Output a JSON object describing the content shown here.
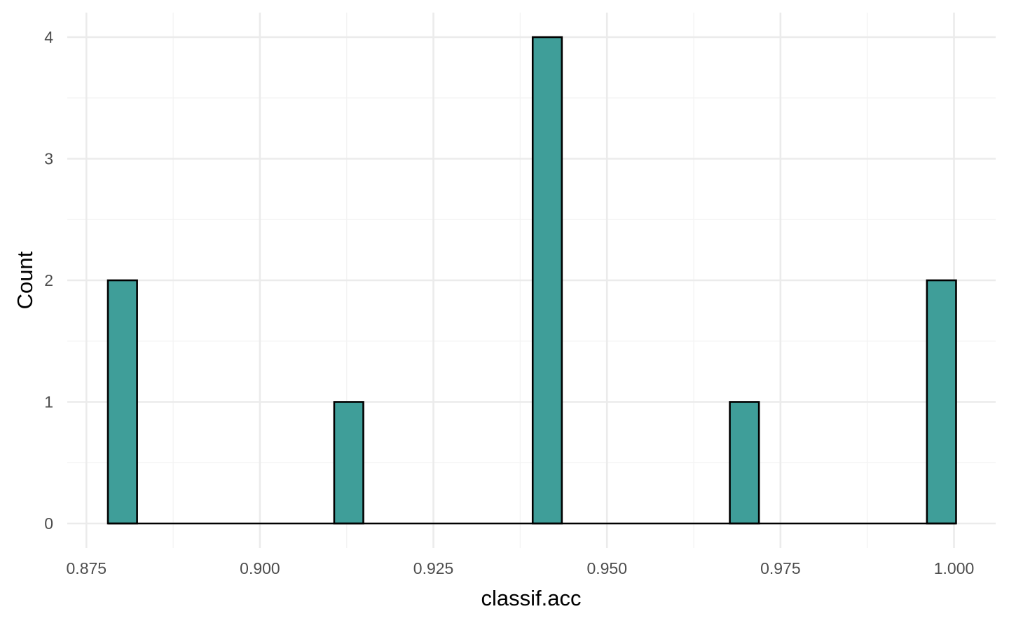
{
  "chart_data": {
    "type": "bar",
    "subtype": "histogram",
    "xlabel": "classif.acc",
    "ylabel": "Count",
    "xlim": [
      0.871,
      1.006
    ],
    "ylim": [
      0,
      4.2
    ],
    "x_ticks": [
      0.875,
      0.9,
      0.925,
      0.95,
      0.975,
      1.0
    ],
    "x_tick_labels": [
      "0.875",
      "0.900",
      "0.925",
      "0.950",
      "0.975",
      "1.000"
    ],
    "y_ticks": [
      0,
      1,
      2,
      3,
      4
    ],
    "y_tick_labels": [
      "0",
      "1",
      "2",
      "3",
      "4"
    ],
    "bin_width": 0.00419,
    "bins": [
      {
        "x0": 0.8781,
        "x1": 0.8823,
        "count": 2
      },
      {
        "x0": 0.9107,
        "x1": 0.9149,
        "count": 1
      },
      {
        "x0": 0.9393,
        "x1": 0.9435,
        "count": 4
      },
      {
        "x0": 0.9677,
        "x1": 0.9719,
        "count": 1
      },
      {
        "x0": 0.9961,
        "x1": 1.0003,
        "count": 2
      }
    ],
    "range": [
      0.8781,
      1.0003
    ],
    "fill_color": "#3f9e99",
    "stroke_color": "#000000",
    "grid": true,
    "legend": "none"
  }
}
